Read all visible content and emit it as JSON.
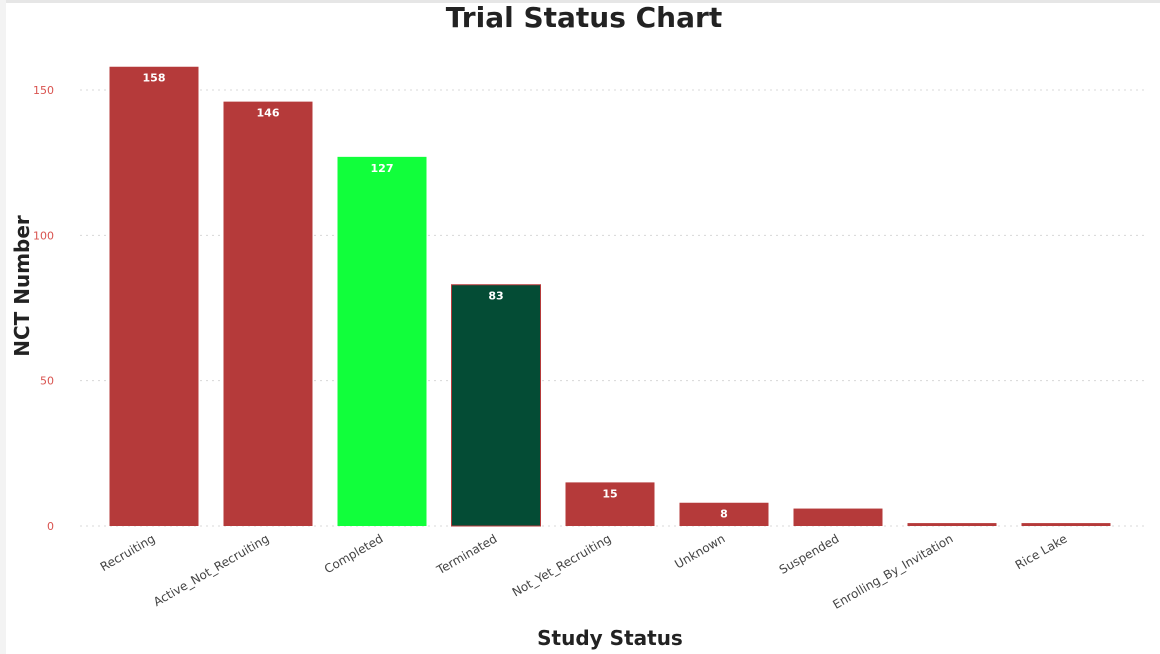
{
  "chart_data": {
    "type": "bar",
    "title": "Trial Status Chart",
    "xlabel": "Study Status",
    "ylabel": "NCT Number",
    "ylim": [
      0,
      160
    ],
    "yticks": [
      0,
      50,
      100,
      150
    ],
    "grid": true,
    "categories": [
      "Recruiting",
      "Active_Not_Recruiting",
      "Completed",
      "Terminated",
      "Not_Yet_Recruiting",
      "Unknown",
      "Suspended",
      "Enrolling_By_Invitation",
      "Rice Lake"
    ],
    "values": [
      158,
      146,
      127,
      83,
      15,
      8,
      6,
      1,
      1
    ],
    "data_labels": [
      "158",
      "146",
      "127",
      "83",
      "15",
      "8",
      "",
      "",
      ""
    ],
    "colors": [
      "#b53a3a",
      "#b53a3a",
      "#11ff3b",
      "#044c35",
      "#b53a3a",
      "#b53a3a",
      "#b53a3a",
      "#b53a3a",
      "#b53a3a"
    ]
  }
}
